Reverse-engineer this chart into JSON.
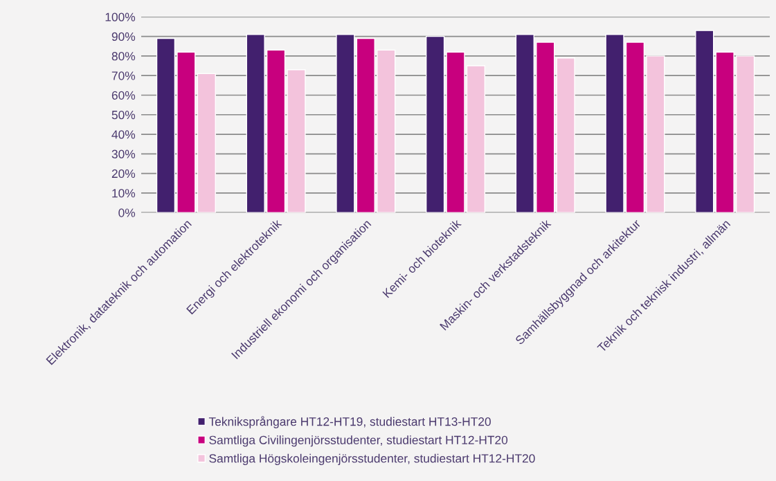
{
  "chart_data": {
    "type": "bar",
    "categories": [
      "Elektronik, datateknik och automation",
      "Energi och elektroteknik",
      "Industriell ekonomi och organisation",
      "Kemi- och bioteknik",
      "Maskin- och verkstadsteknik",
      "Samhällsbyggnad och arkitektur",
      "Teknik och teknisk industri, allmän"
    ],
    "series": [
      {
        "name": "Tekniksprångare HT12-HT19, studiestart HT13-HT20",
        "color": "#42206e",
        "values": [
          89,
          91,
          91,
          90,
          91,
          91,
          93
        ]
      },
      {
        "name": "Samtliga Civilingenjörsstudenter, studiestart HT12-HT20",
        "color": "#c8007e",
        "values": [
          82,
          83,
          89,
          82,
          87,
          87,
          82
        ]
      },
      {
        "name": "Samtliga Högskoleingenjörsstudenter, studiestart HT12-HT20",
        "color": "#f3c3dc",
        "values": [
          71,
          73,
          83,
          75,
          79,
          80,
          80
        ]
      }
    ],
    "ylim": [
      0,
      100
    ],
    "yticks": [
      {
        "value": 0,
        "label": "0%"
      },
      {
        "value": 10,
        "label": "10%"
      },
      {
        "value": 20,
        "label": "20%"
      },
      {
        "value": 30,
        "label": "30%"
      },
      {
        "value": 40,
        "label": "40%"
      },
      {
        "value": 50,
        "label": "50%"
      },
      {
        "value": 60,
        "label": "60%"
      },
      {
        "value": 70,
        "label": "70%"
      },
      {
        "value": 80,
        "label": "80%"
      },
      {
        "value": 90,
        "label": "90%"
      },
      {
        "value": 100,
        "label": "100%"
      }
    ],
    "grid": "y",
    "legend": "bottom"
  }
}
